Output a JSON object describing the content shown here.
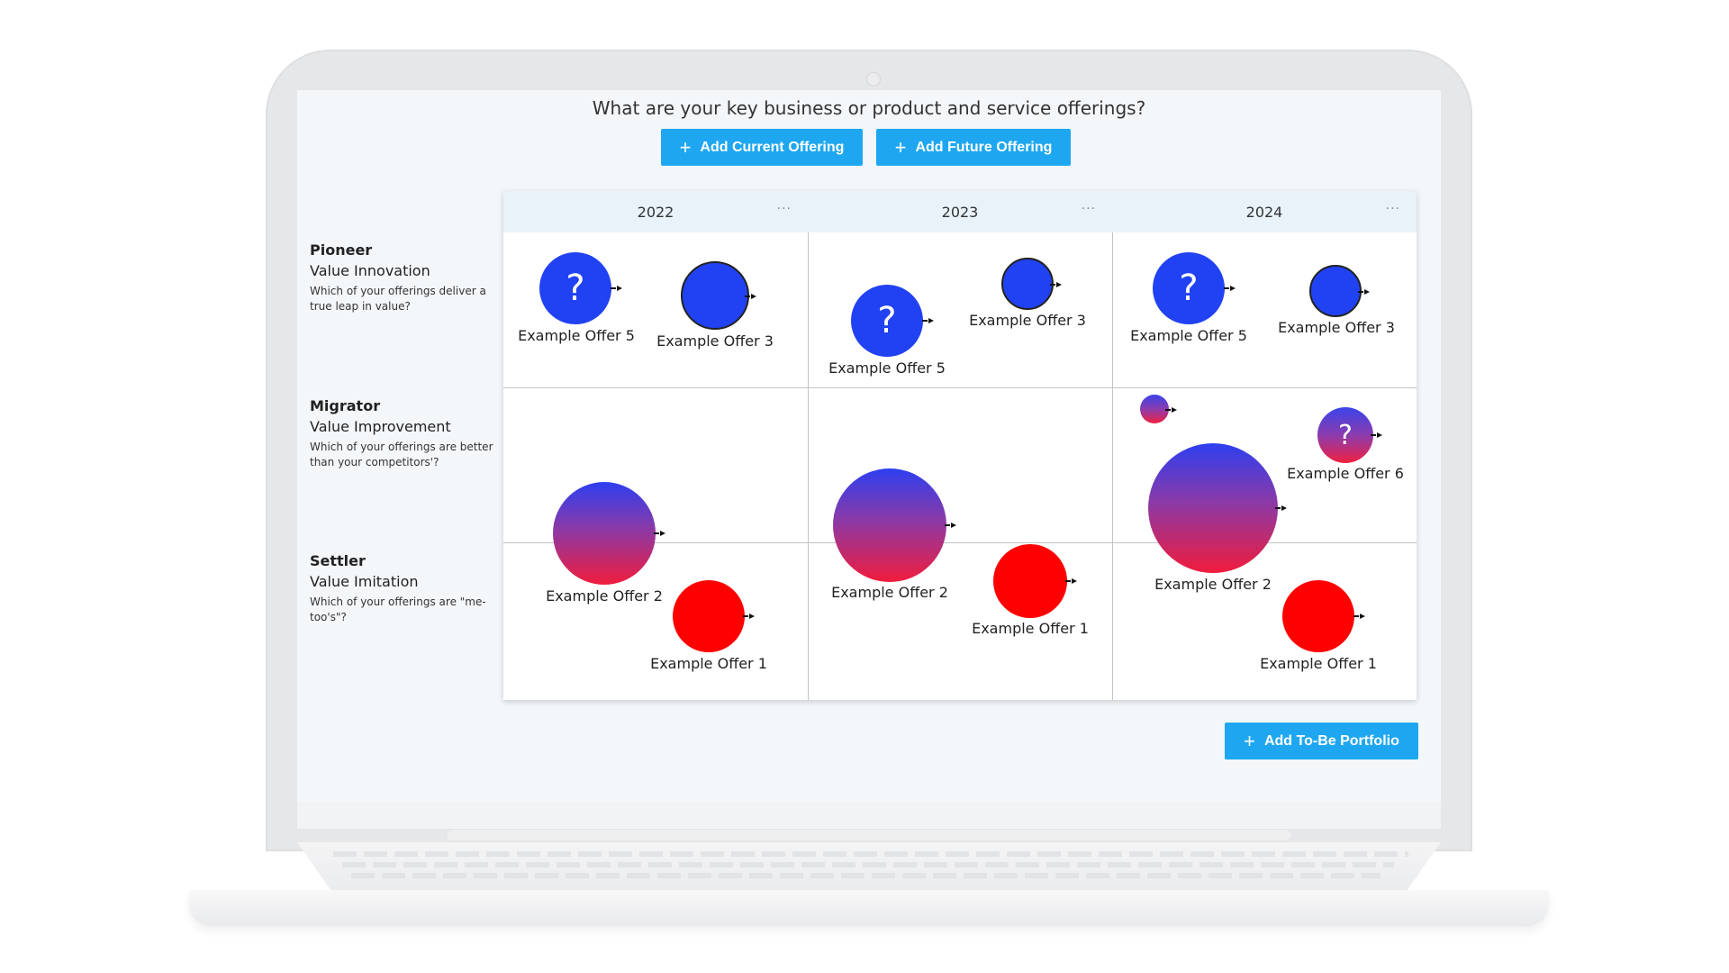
{
  "header": {
    "question": "What are your key business or product and service offerings?",
    "add_current_label": "Add Current Offering",
    "add_future_label": "Add Future Offering"
  },
  "columns": [
    {
      "year": "2022",
      "menu": "···"
    },
    {
      "year": "2023",
      "menu": "···"
    },
    {
      "year": "2024",
      "menu": "···"
    }
  ],
  "rows": [
    {
      "name": "Pioneer",
      "subtitle": "Value Innovation",
      "description": "Which of your offerings deliver a true leap in value?"
    },
    {
      "name": "Migrator",
      "subtitle": "Value Improvement",
      "description": "Which of your offerings are better than your competitors'?"
    },
    {
      "name": "Settler",
      "subtitle": "Value Imitation",
      "description": "Which of your offerings are \"me-too's\"?"
    }
  ],
  "offers": {
    "y2022": {
      "offer5": {
        "label": "Example Offer 5",
        "mark": "?"
      },
      "offer3": {
        "label": "Example Offer 3"
      },
      "offer2": {
        "label": "Example Offer 2"
      },
      "offer1": {
        "label": "Example Offer 1"
      }
    },
    "y2023": {
      "offer5": {
        "label": "Example Offer 5",
        "mark": "?"
      },
      "offer3": {
        "label": "Example Offer 3"
      },
      "offer2": {
        "label": "Example Offer 2"
      },
      "offer1": {
        "label": "Example Offer 1"
      }
    },
    "y2024": {
      "offer5": {
        "label": "Example Offer 5",
        "mark": "?"
      },
      "offer3": {
        "label": "Example Offer 3"
      },
      "offer6": {
        "label": "Example Offer 6",
        "mark": "?"
      },
      "offer2": {
        "label": "Example Offer 2"
      },
      "offer1": {
        "label": "Example Offer 1"
      }
    }
  },
  "footer": {
    "add_portfolio_label": "Add To-Be Portfolio"
  },
  "colors": {
    "accent": "#1ea7f0",
    "pioneer_blue": "#2142f2",
    "settler_red": "#fe0000"
  }
}
